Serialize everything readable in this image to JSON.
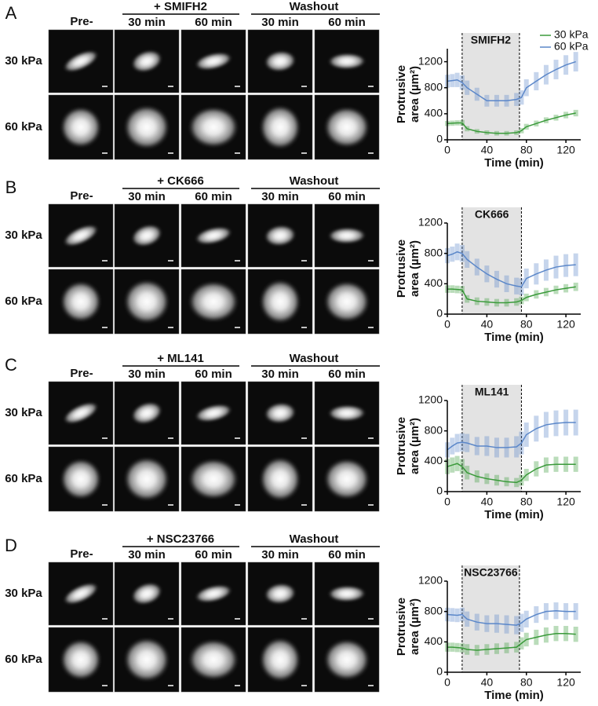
{
  "panels": [
    {
      "letter": "A",
      "pre": "Pre-",
      "drug": "+ SMIFH2",
      "washout": "Washout",
      "times": [
        "30 min",
        "60 min",
        "30 min",
        "60 min"
      ],
      "rows": [
        "30 kPa",
        "60 kPa"
      ]
    },
    {
      "letter": "B",
      "pre": "Pre-",
      "drug": "+ CK666",
      "washout": "Washout",
      "times": [
        "30 min",
        "60 min",
        "30 min",
        "60 min"
      ],
      "rows": [
        "30 kPa",
        "60 kPa"
      ]
    },
    {
      "letter": "C",
      "pre": "Pre-",
      "drug": "+ ML141",
      "washout": "Washout",
      "times": [
        "30 min",
        "60 min",
        "30 min",
        "60 min"
      ],
      "rows": [
        "30 kPa",
        "60 kPa"
      ]
    },
    {
      "letter": "D",
      "pre": "Pre-",
      "drug": "+ NSC23766",
      "washout": "Washout",
      "times": [
        "30 min",
        "60 min",
        "30 min",
        "60 min"
      ],
      "rows": [
        "30 kPa",
        "60 kPa"
      ]
    }
  ],
  "chart_data": [
    {
      "type": "line",
      "treatment": "SMIFH2",
      "shade": [
        15,
        73
      ],
      "xlabel": "Time (min)",
      "ylabel": [
        "Protrusive",
        "area (µm²)"
      ],
      "xlim": [
        0,
        135
      ],
      "xticks": [
        0,
        40,
        80,
        120
      ],
      "ylim": [
        0,
        1400
      ],
      "yticks": [
        0,
        400,
        800,
        1200
      ],
      "legend": "top-right",
      "x": [
        0,
        5,
        10,
        15,
        20,
        30,
        40,
        50,
        60,
        70,
        75,
        80,
        90,
        100,
        110,
        120,
        130
      ],
      "series": [
        {
          "name": "30 kPa",
          "color": "#3a9a3a",
          "values": [
            250,
            255,
            260,
            260,
            170,
            130,
            110,
            100,
            100,
            110,
            140,
            200,
            250,
            300,
            340,
            380,
            410
          ],
          "errors": [
            40,
            40,
            40,
            45,
            40,
            35,
            35,
            35,
            35,
            35,
            40,
            45,
            45,
            45,
            45,
            50,
            50
          ]
        },
        {
          "name": "60 kPa",
          "color": "#5b87c9",
          "values": [
            900,
            910,
            920,
            880,
            800,
            700,
            600,
            600,
            600,
            620,
            650,
            800,
            900,
            1000,
            1080,
            1150,
            1200
          ],
          "errors": [
            100,
            100,
            110,
            110,
            110,
            100,
            90,
            90,
            90,
            100,
            110,
            130,
            140,
            150,
            150,
            150,
            150
          ]
        }
      ]
    },
    {
      "type": "line",
      "treatment": "CK666",
      "shade": [
        15,
        75
      ],
      "xlabel": "Time (min)",
      "ylabel": [
        "Protrusive",
        "area (µm²)"
      ],
      "xlim": [
        0,
        135
      ],
      "xticks": [
        0,
        40,
        80,
        120
      ],
      "ylim": [
        0,
        1200
      ],
      "yticks": [
        0,
        400,
        800,
        1200
      ],
      "x": [
        0,
        5,
        10,
        15,
        20,
        30,
        40,
        50,
        60,
        70,
        75,
        80,
        90,
        100,
        110,
        120,
        130
      ],
      "series": [
        {
          "color": "#3a9a3a",
          "values": [
            330,
            330,
            325,
            320,
            200,
            170,
            160,
            150,
            150,
            160,
            180,
            220,
            260,
            290,
            320,
            340,
            360
          ],
          "errors": [
            50,
            50,
            50,
            50,
            50,
            50,
            50,
            50,
            50,
            50,
            50,
            50,
            55,
            55,
            55,
            55,
            55
          ]
        },
        {
          "color": "#5b87c9",
          "values": [
            770,
            790,
            820,
            800,
            720,
            620,
            530,
            460,
            400,
            370,
            360,
            470,
            530,
            580,
            620,
            640,
            650
          ],
          "errors": [
            100,
            100,
            110,
            110,
            110,
            110,
            110,
            110,
            110,
            110,
            110,
            130,
            140,
            140,
            150,
            150,
            150
          ]
        }
      ]
    },
    {
      "type": "line",
      "treatment": "ML141",
      "shade": [
        15,
        75
      ],
      "xlabel": "Time (min)",
      "ylabel": [
        "Protrusive",
        "area (µm²)"
      ],
      "xlim": [
        0,
        135
      ],
      "xticks": [
        0,
        40,
        80,
        120
      ],
      "ylim": [
        0,
        1200
      ],
      "yticks": [
        0,
        400,
        800,
        1200
      ],
      "x": [
        0,
        5,
        10,
        15,
        20,
        30,
        40,
        50,
        60,
        70,
        75,
        80,
        90,
        100,
        110,
        120,
        130
      ],
      "series": [
        {
          "color": "#3a9a3a",
          "values": [
            330,
            350,
            370,
            330,
            250,
            200,
            170,
            150,
            130,
            120,
            150,
            220,
            300,
            350,
            360,
            360,
            360
          ],
          "errors": [
            100,
            100,
            100,
            100,
            90,
            80,
            70,
            70,
            60,
            60,
            70,
            80,
            100,
            100,
            100,
            100,
            100
          ]
        },
        {
          "color": "#5b87c9",
          "values": [
            550,
            600,
            640,
            650,
            640,
            600,
            600,
            580,
            580,
            590,
            640,
            750,
            830,
            880,
            900,
            910,
            910
          ],
          "errors": [
            100,
            110,
            120,
            120,
            120,
            120,
            130,
            130,
            130,
            140,
            150,
            160,
            170,
            170,
            170,
            170,
            170
          ]
        }
      ]
    },
    {
      "type": "line",
      "treatment": "NSC23766",
      "shade": [
        15,
        73
      ],
      "xlabel": "Time (min)",
      "ylabel": [
        "Protrusive",
        "area (µm²)"
      ],
      "xlim": [
        0,
        135
      ],
      "xticks": [
        0,
        40,
        80,
        120
      ],
      "ylim": [
        0,
        1200
      ],
      "yticks": [
        0,
        400,
        800,
        1200
      ],
      "x": [
        0,
        5,
        10,
        15,
        20,
        30,
        40,
        50,
        60,
        70,
        75,
        80,
        90,
        100,
        110,
        120,
        130
      ],
      "series": [
        {
          "color": "#3a9a3a",
          "values": [
            330,
            330,
            325,
            320,
            300,
            290,
            300,
            310,
            320,
            330,
            380,
            430,
            460,
            490,
            510,
            510,
            500
          ],
          "errors": [
            60,
            60,
            60,
            60,
            70,
            70,
            70,
            70,
            70,
            70,
            80,
            90,
            100,
            100,
            100,
            100,
            100
          ]
        },
        {
          "color": "#5b87c9",
          "values": [
            760,
            755,
            750,
            760,
            700,
            660,
            640,
            640,
            630,
            620,
            650,
            700,
            760,
            800,
            810,
            800,
            800
          ],
          "errors": [
            90,
            90,
            90,
            90,
            100,
            110,
            110,
            120,
            120,
            120,
            120,
            110,
            110,
            110,
            110,
            110,
            110
          ]
        }
      ]
    }
  ]
}
